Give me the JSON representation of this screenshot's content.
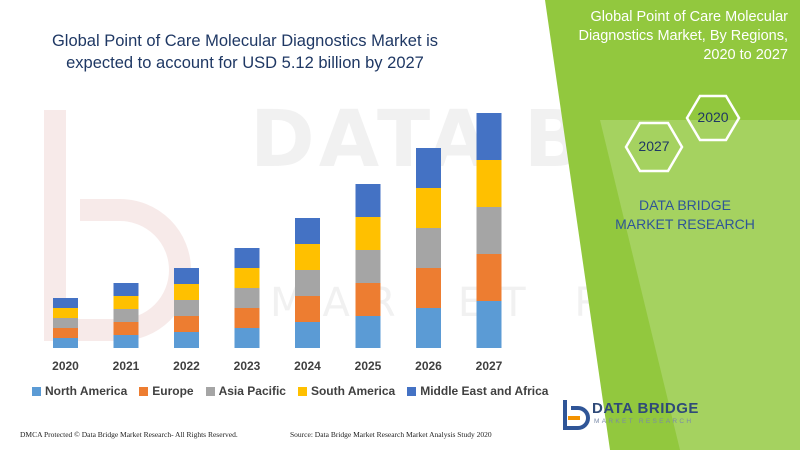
{
  "header": {
    "title": "Global Point of Care Molecular Diagnostics Market is expected to account for USD 5.12 billion by 2027"
  },
  "side_panel": {
    "title": "Global Point of Care Molecular Diagnostics Market, By Regions, 2020 to 2027",
    "hex_2020": "2020",
    "hex_2027": "2027",
    "brand_name": "DATA BRIDGE MARKET RESEARCH",
    "panel_color": "#92c83e"
  },
  "logo": {
    "name": "DATA BRIDGE",
    "tagline": "MARKET RESEARCH"
  },
  "watermark": {
    "line1": "DATA BRIDGE",
    "line2": "MARKET RESEARCH"
  },
  "footer": {
    "left": "DMCA Protected © Data Bridge Market Research- All Rights Reserved.",
    "right": "Source: Data Bridge Market Research Market Analysis Study 2020"
  },
  "chart_data": {
    "type": "bar",
    "stacked": true,
    "categories": [
      "2020",
      "2021",
      "2022",
      "2023",
      "2024",
      "2025",
      "2026",
      "2027"
    ],
    "series": [
      {
        "name": "North America",
        "color": "#5b9bd5",
        "values": [
          10,
          13,
          16,
          20,
          26,
          32,
          40,
          47
        ]
      },
      {
        "name": "Europe",
        "color": "#ed7d31",
        "values": [
          10,
          13,
          16,
          20,
          26,
          33,
          40,
          47
        ]
      },
      {
        "name": "Asia Pacific",
        "color": "#a5a5a5",
        "values": [
          10,
          13,
          16,
          20,
          26,
          33,
          40,
          47
        ]
      },
      {
        "name": "South America",
        "color": "#ffc000",
        "values": [
          10,
          13,
          16,
          20,
          26,
          33,
          40,
          47
        ]
      },
      {
        "name": "Middle East and Africa",
        "color": "#4472c4",
        "values": [
          10,
          13,
          16,
          20,
          26,
          33,
          40,
          47
        ]
      }
    ],
    "legend_position": "bottom",
    "grid": false
  }
}
